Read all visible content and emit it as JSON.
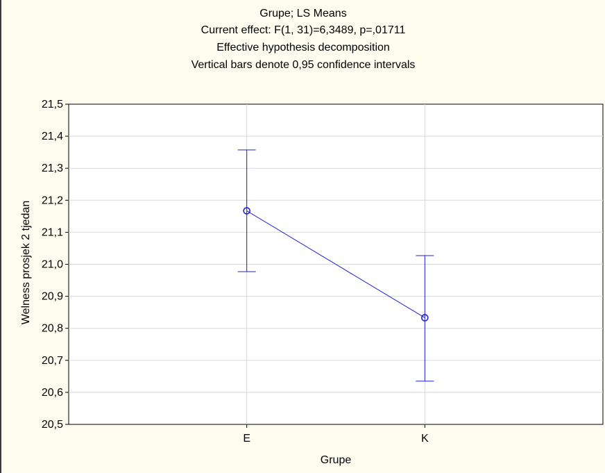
{
  "colors": {
    "background": "#fdfcef",
    "plot_background": "#ffffff",
    "series": "#1f1fd6",
    "grid": "#d8d8d8",
    "axis": "#000000"
  },
  "chart_data": {
    "type": "line",
    "title_lines": [
      "Grupe; LS Means",
      "Current effect: F(1, 31)=6,3489, p=,01711",
      "Effective hypothesis decomposition",
      "Vertical bars denote 0,95 confidence intervals"
    ],
    "xlabel": "Grupe",
    "ylabel": "Welness prosjek 2 tjedan",
    "categories": [
      "E",
      "K"
    ],
    "ylim": [
      20.5,
      21.5
    ],
    "y_ticks": [
      "20,5",
      "20,6",
      "20,7",
      "20,8",
      "20,9",
      "21,0",
      "21,1",
      "21,2",
      "21,3",
      "21,4",
      "21,5"
    ],
    "grid": true,
    "series": [
      {
        "values": [
          21.167,
          20.833
        ],
        "ci_lower": [
          20.977,
          20.635
        ],
        "ci_upper": [
          21.357,
          21.027
        ],
        "marker": "circle"
      }
    ]
  }
}
